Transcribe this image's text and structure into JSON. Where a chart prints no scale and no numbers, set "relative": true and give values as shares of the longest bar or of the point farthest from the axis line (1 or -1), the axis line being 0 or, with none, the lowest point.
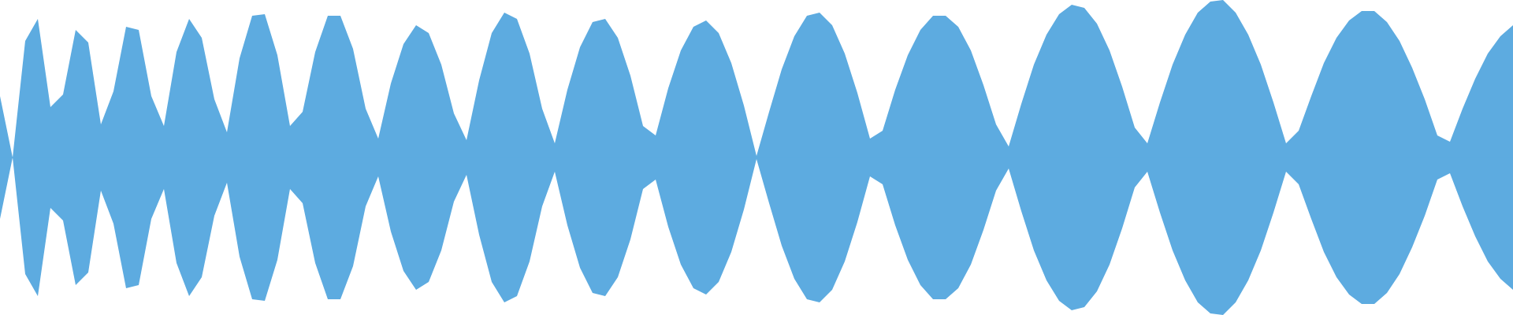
{
  "chart_data": {
    "type": "area",
    "relative": true,
    "categories": [
      null,
      null,
      null,
      null,
      null,
      null,
      null,
      null,
      null,
      null,
      null,
      null,
      null,
      null,
      null,
      null,
      null,
      null,
      null,
      null,
      null,
      null,
      null,
      null,
      null,
      null,
      null,
      null,
      null,
      null,
      null,
      null,
      null,
      null,
      null,
      null,
      null,
      null,
      null,
      null,
      null,
      null,
      null,
      null,
      null,
      null,
      null,
      null,
      null,
      null,
      null,
      null,
      null,
      null,
      null,
      null,
      null,
      null,
      null,
      null,
      null,
      null,
      null,
      null,
      null,
      null,
      null,
      null,
      null,
      null,
      null,
      null,
      null,
      null,
      null,
      null,
      null,
      null,
      null,
      null,
      null,
      null,
      null,
      null,
      null,
      null,
      null,
      null,
      null,
      null,
      null,
      null,
      null,
      null,
      null,
      null,
      null,
      null,
      null,
      null,
      null,
      null,
      null,
      null,
      null,
      null,
      null,
      null,
      null,
      null,
      null,
      null,
      null,
      null,
      null,
      null,
      null,
      null,
      null,
      null,
      null
    ],
    "series": [
      {
        "color": "#5dabe0",
        "values": [
          0.39,
          0,
          0.74,
          0.88,
          0.32,
          0.4,
          0.81,
          0.73,
          0.21,
          0.42,
          0.83,
          0.81,
          0.39,
          0.2,
          0.67,
          0.88,
          0.76,
          0.37,
          0.16,
          0.63,
          0.9,
          0.91,
          0.65,
          0.2,
          0.29,
          0.67,
          0.9,
          0.9,
          0.69,
          0.31,
          0.12,
          0.47,
          0.72,
          0.84,
          0.79,
          0.59,
          0.28,
          0.11,
          0.49,
          0.79,
          0.92,
          0.88,
          0.66,
          0.31,
          0.09,
          0.43,
          0.7,
          0.86,
          0.88,
          0.76,
          0.52,
          0.2,
          0.14,
          0.44,
          0.68,
          0.83,
          0.87,
          0.79,
          0.6,
          0.33,
          0.01,
          0.29,
          0.56,
          0.77,
          0.9,
          0.92,
          0.84,
          0.66,
          0.41,
          0.12,
          0.17,
          0.43,
          0.65,
          0.81,
          0.9,
          0.9,
          0.83,
          0.68,
          0.46,
          0.21,
          0.07,
          0.34,
          0.59,
          0.78,
          0.91,
          0.97,
          0.95,
          0.85,
          0.68,
          0.45,
          0.19,
          0.09,
          0.35,
          0.59,
          0.78,
          0.92,
          0.99,
          1,
          0.92,
          0.78,
          0.59,
          0.35,
          0.09,
          0.17,
          0.39,
          0.6,
          0.76,
          0.87,
          0.93,
          0.93,
          0.86,
          0.74,
          0.57,
          0.37,
          0.14,
          0.1,
          0.31,
          0.5,
          0.66,
          0.77,
          0.84
        ]
      },
      {
        "color": "#5dabe0",
        "values": [
          -0.39,
          0,
          -0.74,
          -0.88,
          -0.32,
          -0.4,
          -0.81,
          -0.73,
          -0.21,
          -0.42,
          -0.83,
          -0.81,
          -0.39,
          -0.2,
          -0.67,
          -0.88,
          -0.76,
          -0.37,
          -0.16,
          -0.63,
          -0.9,
          -0.91,
          -0.65,
          -0.2,
          -0.29,
          -0.67,
          -0.9,
          -0.9,
          -0.69,
          -0.31,
          -0.12,
          -0.47,
          -0.72,
          -0.84,
          -0.79,
          -0.59,
          -0.28,
          -0.11,
          -0.49,
          -0.79,
          -0.92,
          -0.88,
          -0.66,
          -0.31,
          -0.09,
          -0.43,
          -0.7,
          -0.86,
          -0.88,
          -0.76,
          -0.52,
          -0.2,
          -0.14,
          -0.44,
          -0.68,
          -0.83,
          -0.87,
          -0.79,
          -0.6,
          -0.33,
          -0.01,
          -0.29,
          -0.56,
          -0.77,
          -0.9,
          -0.92,
          -0.84,
          -0.66,
          -0.41,
          -0.12,
          -0.17,
          -0.43,
          -0.65,
          -0.81,
          -0.9,
          -0.9,
          -0.83,
          -0.68,
          -0.46,
          -0.21,
          -0.07,
          -0.34,
          -0.59,
          -0.78,
          -0.91,
          -0.97,
          -0.95,
          -0.85,
          -0.68,
          -0.45,
          -0.19,
          -0.09,
          -0.35,
          -0.59,
          -0.78,
          -0.92,
          -0.99,
          -1,
          -0.92,
          -0.78,
          -0.59,
          -0.35,
          -0.09,
          -0.17,
          -0.39,
          -0.6,
          -0.76,
          -0.87,
          -0.93,
          -0.93,
          -0.86,
          -0.74,
          -0.57,
          -0.37,
          -0.14,
          -0.1,
          -0.31,
          -0.5,
          -0.66,
          -0.77,
          -0.84
        ]
      }
    ]
  }
}
